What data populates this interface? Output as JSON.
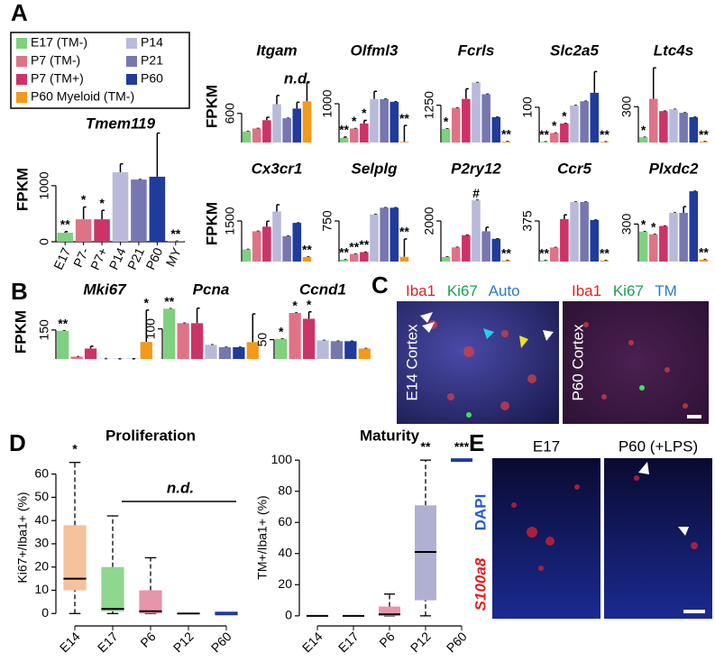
{
  "figure": {
    "panel_labels": [
      "A",
      "B",
      "C",
      "D",
      "E"
    ],
    "legend": [
      {
        "name": "E17 (TM-)",
        "color": "#7fd07f"
      },
      {
        "name": "P7 (TM-)",
        "color": "#de7386"
      },
      {
        "name": "P7 (TM+)",
        "color": "#cc3366"
      },
      {
        "name": "P14",
        "color": "#b9b9d9"
      },
      {
        "name": "P21",
        "color": "#7777b0"
      },
      {
        "name": "P60",
        "color": "#1f3b9c"
      },
      {
        "name": "P60 Myeloid (TM-)",
        "color": "#f29a1a"
      }
    ],
    "panel_c": {
      "left": {
        "markers": [
          "Iba1",
          "Ki67",
          "Auto"
        ],
        "region": "E14 Cortex"
      },
      "right": {
        "markers": [
          "Iba1",
          "Ki67",
          "TM"
        ],
        "region": "P60 Cortex"
      }
    },
    "panel_e": {
      "headers": [
        "E17",
        "P60 (+LPS)"
      ],
      "stains": [
        "S100a8",
        "DAPI"
      ]
    }
  },
  "chart_data": [
    {
      "type": "bar",
      "title": "Tmem119",
      "ylabel": "FPKM",
      "categories": [
        "E17",
        "P7-",
        "P7+",
        "P14",
        "P21",
        "P60",
        "MY"
      ],
      "values": [
        160,
        400,
        400,
        1240,
        1110,
        1160,
        10
      ],
      "errors": [
        20,
        220,
        160,
        150,
        0,
        780,
        0
      ],
      "annotations": [
        "**",
        "*",
        "*",
        null,
        null,
        null,
        "**"
      ],
      "ylim": [
        0,
        1900
      ],
      "yticks": [
        0,
        1000
      ]
    },
    {
      "type": "bar",
      "title": "Itgam",
      "ylabel": "FPKM",
      "note": "n.d.",
      "categories": [
        null,
        null,
        null,
        null,
        null,
        null,
        null
      ],
      "values": [
        230,
        290,
        460,
        790,
        500,
        700,
        850
      ],
      "errors": [
        0,
        0,
        60,
        180,
        0,
        130,
        400
      ],
      "annotations": [
        null,
        null,
        null,
        null,
        null,
        null,
        null
      ],
      "ylim": [
        0,
        1600
      ],
      "yticks": [
        600
      ]
    },
    {
      "type": "bar",
      "title": "Olfml3",
      "categories": [
        null,
        null,
        null,
        null,
        null,
        null,
        null
      ],
      "values": [
        120,
        360,
        490,
        1120,
        1120,
        1050,
        20
      ],
      "errors": [
        20,
        0,
        80,
        200,
        0,
        0,
        420
      ],
      "annotations": [
        "**",
        "*",
        "*",
        null,
        null,
        null,
        "**"
      ],
      "ylim": [
        0,
        2000
      ],
      "yticks": [
        1000
      ]
    },
    {
      "type": "bar",
      "title": "Fcrls",
      "categories": [
        null,
        null,
        null,
        null,
        null,
        null,
        null
      ],
      "values": [
        460,
        1160,
        1460,
        2010,
        1620,
        850,
        30
      ],
      "errors": [
        0,
        0,
        340,
        0,
        0,
        0,
        0
      ],
      "annotations": [
        "*",
        null,
        null,
        null,
        null,
        null,
        "**"
      ],
      "ylim": [
        0,
        2600
      ],
      "yticks": [
        1250
      ]
    },
    {
      "type": "bar",
      "title": "Slc2a5",
      "categories": [
        null,
        null,
        null,
        null,
        null,
        null,
        null
      ],
      "values": [
        2,
        27,
        54,
        105,
        117,
        141,
        2
      ],
      "errors": [
        0,
        0,
        0,
        0,
        0,
        60,
        0
      ],
      "annotations": [
        "**",
        "*",
        "*",
        null,
        null,
        null,
        "**"
      ],
      "ylim": [
        0,
        220
      ],
      "yticks": [
        100
      ]
    },
    {
      "type": "bar",
      "title": "Ltc4s",
      "categories": [
        null,
        null,
        null,
        null,
        null,
        null,
        null
      ],
      "values": [
        44,
        366,
        263,
        278,
        249,
        212,
        7
      ],
      "errors": [
        0,
        260,
        0,
        0,
        0,
        0,
        0
      ],
      "annotations": [
        "*",
        null,
        null,
        null,
        null,
        null,
        "**"
      ],
      "ylim": [
        0,
        650
      ],
      "yticks": [
        300
      ]
    },
    {
      "type": "bar",
      "title": "Cx3cr1",
      "ylabel": "FPKM",
      "categories": [
        null,
        null,
        null,
        null,
        null,
        null,
        null
      ],
      "values": [
        450,
        1120,
        1290,
        1850,
        940,
        1430,
        170
      ],
      "errors": [
        0,
        0,
        200,
        250,
        0,
        0,
        0
      ],
      "annotations": [
        null,
        null,
        null,
        null,
        null,
        null,
        "**"
      ],
      "ylim": [
        0,
        3000
      ],
      "yticks": [
        1500
      ]
    },
    {
      "type": "bar",
      "title": "Selplg",
      "categories": [
        null,
        null,
        null,
        null,
        null,
        null,
        null
      ],
      "values": [
        35,
        140,
        175,
        870,
        995,
        995,
        87
      ],
      "errors": [
        0,
        0,
        0,
        0,
        0,
        0,
        330
      ],
      "annotations": [
        "**",
        "**",
        "**",
        null,
        null,
        null,
        "**"
      ],
      "ylim": [
        0,
        1500
      ],
      "yticks": [
        750
      ]
    },
    {
      "type": "bar",
      "title": "P2ry12",
      "categories": [
        null,
        null,
        null,
        null,
        null,
        null,
        null
      ],
      "values": [
        230,
        700,
        1300,
        3020,
        1490,
        1120,
        50
      ],
      "errors": [
        0,
        0,
        0,
        0,
        200,
        0,
        0
      ],
      "annotations": [
        null,
        null,
        null,
        "#",
        null,
        null,
        "**"
      ],
      "ylim": [
        0,
        4000
      ],
      "yticks": [
        2000
      ]
    },
    {
      "type": "bar",
      "title": "Ccr5",
      "categories": [
        null,
        null,
        null,
        null,
        null,
        null,
        null
      ],
      "values": [
        9,
        130,
        392,
        550,
        550,
        384,
        9
      ],
      "errors": [
        0,
        0,
        40,
        0,
        0,
        0,
        0
      ],
      "annotations": [
        "**",
        null,
        null,
        null,
        null,
        null,
        "**"
      ],
      "ylim": [
        0,
        750
      ],
      "yticks": [
        375
      ]
    },
    {
      "type": "bar",
      "title": "Plxdc2",
      "categories": [
        null,
        null,
        null,
        null,
        null,
        null,
        null
      ],
      "values": [
        240,
        218,
        285,
        390,
        390,
        563,
        15
      ],
      "errors": [
        0,
        0,
        0,
        0,
        50,
        0,
        0
      ],
      "annotations": [
        "*",
        "*",
        null,
        null,
        null,
        null,
        "**"
      ],
      "ylim": [
        0,
        650
      ],
      "yticks": [
        300
      ]
    },
    {
      "type": "bar",
      "title": "Mki67",
      "ylabel": "FPKM",
      "categories": [
        null,
        null,
        null,
        null,
        null,
        null,
        null
      ],
      "values": [
        146,
        12,
        54,
        2,
        1,
        1,
        88
      ],
      "errors": [
        0,
        0,
        12,
        0,
        0,
        0,
        165
      ],
      "annotations": [
        "**",
        null,
        null,
        null,
        null,
        null,
        "*"
      ],
      "ylim": [
        0,
        280
      ],
      "yticks": [
        150
      ]
    },
    {
      "type": "bar",
      "title": "Pcna",
      "categories": [
        null,
        null,
        null,
        null,
        null,
        null,
        null
      ],
      "values": [
        167,
        119,
        119,
        47,
        39,
        39,
        56
      ],
      "errors": [
        0,
        0,
        50,
        0,
        0,
        0,
        94
      ],
      "annotations": [
        "**",
        null,
        null,
        null,
        null,
        null,
        null
      ],
      "ylim": [
        0,
        180
      ],
      "yticks": [
        100
      ]
    },
    {
      "type": "bar",
      "title": "Ccnd1",
      "categories": [
        null,
        null,
        null,
        null,
        null,
        null,
        null
      ],
      "values": [
        52,
        119,
        104,
        48,
        46,
        46,
        27
      ],
      "errors": [
        0,
        0,
        18,
        0,
        0,
        0,
        0
      ],
      "annotations": [
        "*",
        "*",
        "*",
        null,
        null,
        null,
        null
      ],
      "ylim": [
        0,
        140
      ],
      "yticks": [
        50
      ]
    },
    {
      "type": "box",
      "title": "Proliferation",
      "ylabel": "Ki67+/Iba1+ (%)",
      "note": "n.d.",
      "categories": [
        "E14",
        "E17",
        "P6",
        "P12",
        "P60"
      ],
      "colors": [
        "#f6c29c",
        "#8fd68f",
        "#e795ab",
        "#b9b9d9",
        "#1f3b9c"
      ],
      "boxes": [
        {
          "min": 0,
          "q1": 10,
          "median": 15,
          "q3": 38,
          "max": 65
        },
        {
          "min": 0,
          "q1": 1,
          "median": 2,
          "q3": 20,
          "max": 42
        },
        {
          "min": 0,
          "q1": 0,
          "median": 1,
          "q3": 10,
          "max": 24
        },
        {
          "min": 0,
          "q1": 0,
          "median": 0,
          "q3": 0,
          "max": 0
        },
        {
          "min": 0,
          "q1": 0,
          "median": 0,
          "q3": 0,
          "max": 0
        }
      ],
      "annotations": [
        "*",
        null,
        null,
        null,
        null
      ],
      "ylim": [
        -3,
        68
      ],
      "yticks": [
        0,
        10,
        20,
        30,
        40,
        50,
        60
      ]
    },
    {
      "type": "box",
      "title": "Maturity",
      "ylabel": "TM+/Iba1+ (%)",
      "categories": [
        "E14",
        "E17",
        "P6",
        "P12",
        "P60"
      ],
      "colors": [
        "#f6c29c",
        "#8fd68f",
        "#e795ab",
        "#b0b0d2",
        "#1f3b9c"
      ],
      "boxes": [
        {
          "min": 0,
          "q1": 0,
          "median": 0,
          "q3": 0,
          "max": 0
        },
        {
          "min": 0,
          "q1": 0,
          "median": 0,
          "q3": 0,
          "max": 0
        },
        {
          "min": 0,
          "q1": 0,
          "median": 1,
          "q3": 6,
          "max": 14
        },
        {
          "min": 0,
          "q1": 10,
          "median": 41,
          "q3": 71,
          "max": 100
        },
        {
          "min": 100,
          "q1": 100,
          "median": 100,
          "q3": 100,
          "max": 100
        }
      ],
      "annotations": [
        null,
        null,
        null,
        "**",
        "***"
      ],
      "ylim": [
        -3,
        103
      ],
      "yticks": [
        0,
        20,
        40,
        60,
        80,
        100
      ]
    }
  ]
}
